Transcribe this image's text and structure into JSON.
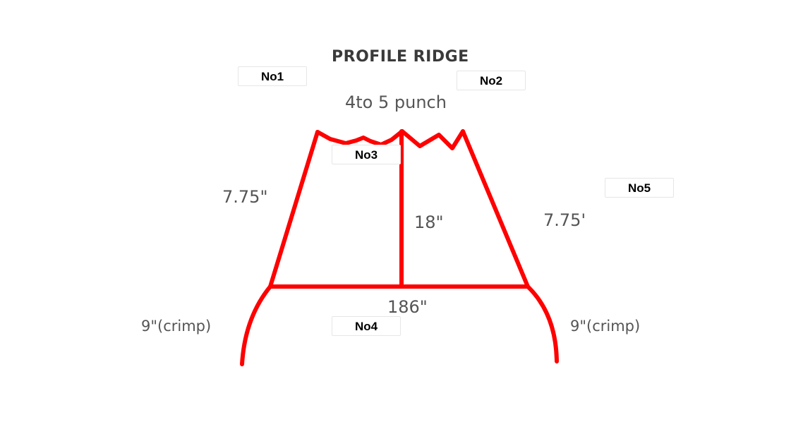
{
  "title": "PROFILE RIDGE",
  "annotations": {
    "punch": "4to 5 punch",
    "left_side": "7.75\"",
    "center_height": "18\"",
    "right_side": "7.75'",
    "base_width": "186\"",
    "left_crimp": "9\"(crimp)",
    "right_crimp": "9\"(crimp)"
  },
  "tags": {
    "no1": "No1",
    "no2": "No2",
    "no3": "No3",
    "no4": "No4",
    "no5": "No5"
  },
  "colors": {
    "profile_line": "#ff0000",
    "annotation_text": "#555555",
    "tag_text": "#000000"
  }
}
